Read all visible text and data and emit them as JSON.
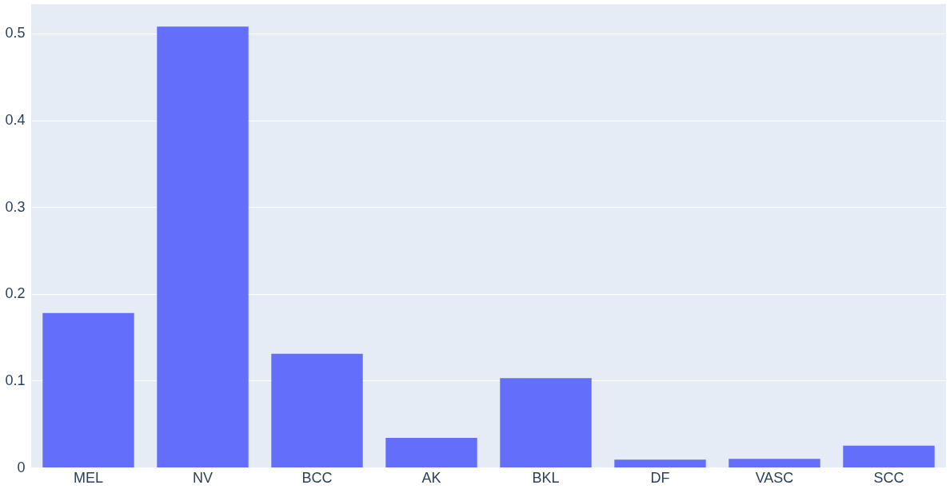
{
  "chart_data": {
    "type": "bar",
    "categories": [
      "MEL",
      "NV",
      "BCC",
      "AK",
      "BKL",
      "DF",
      "VASC",
      "SCC"
    ],
    "values": [
      0.178,
      0.508,
      0.131,
      0.034,
      0.103,
      0.009,
      0.01,
      0.025
    ],
    "color": "#636efa",
    "ylim": [
      0,
      0.534
    ],
    "yticks": [
      0,
      0.1,
      0.2,
      0.3,
      0.4,
      0.5
    ],
    "grid": "y"
  }
}
